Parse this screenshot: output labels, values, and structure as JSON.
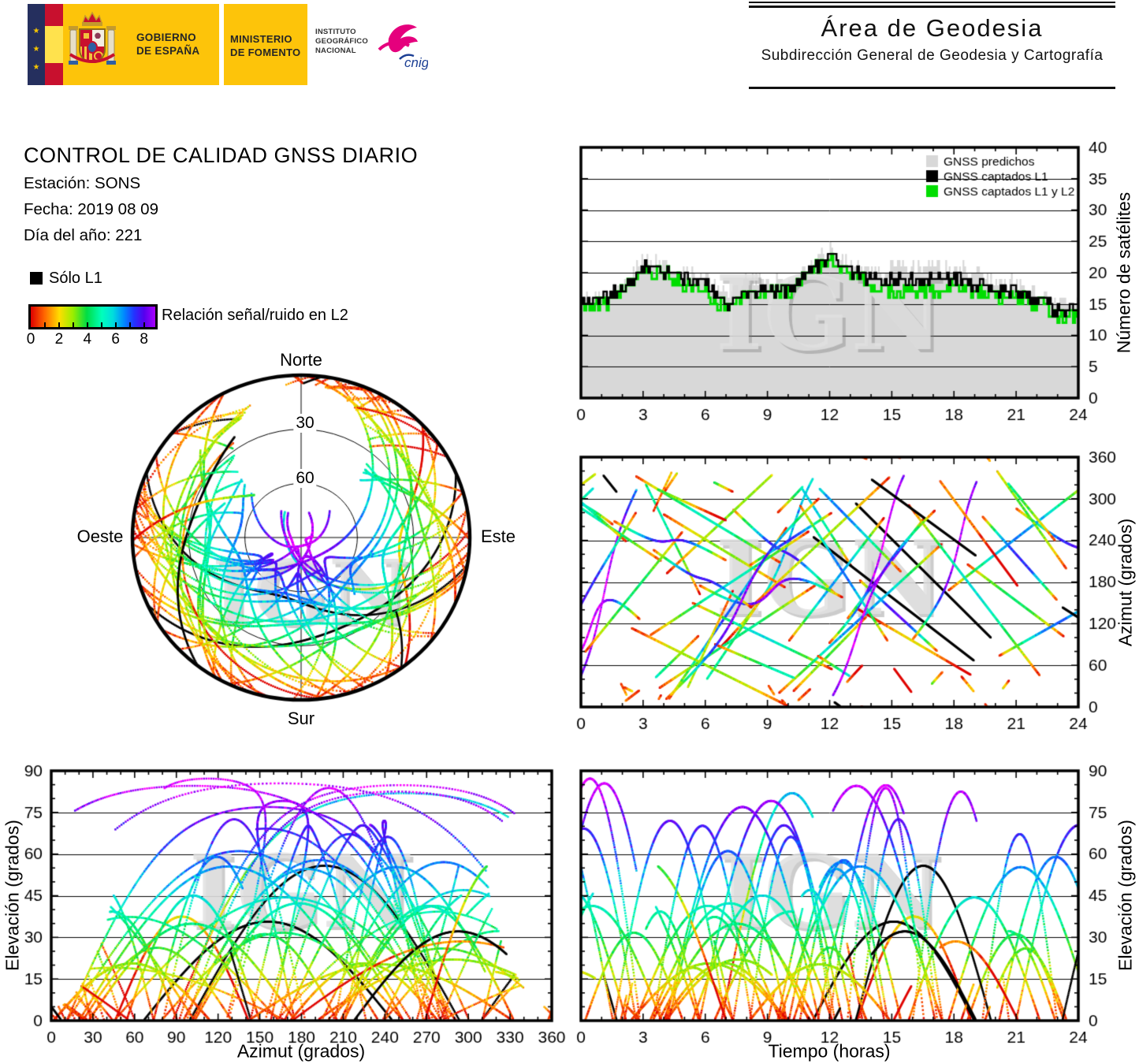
{
  "header": {
    "gobierno_line1": "GOBIERNO",
    "gobierno_line2": "DE ESPAÑA",
    "ministerio_line1": "MINISTERIO",
    "ministerio_line2": "DE FOMENTO",
    "instituto_line1": "INSTITUTO",
    "instituto_line2": "GEOGRÁFICO",
    "instituto_line3": "NACIONAL",
    "cnig": "cnig",
    "area_title": "Área de Geodesia",
    "area_subtitle": "Subdirección General de Geodesia y Cartografía"
  },
  "report": {
    "title": "CONTROL DE CALIDAD GNSS DIARIO",
    "station": "Estación: SONS",
    "date": "Fecha: 2019 08 09",
    "day_of_year": "Día del año: 221"
  },
  "legend": {
    "solo_l1": "Sólo L1",
    "colorbar_label": "Relación señal/ruido en L2",
    "colorbar_ticks": [
      "0",
      "2",
      "4",
      "6",
      "8"
    ],
    "colorbar_max": 8.8
  },
  "watermark": "IGN",
  "sky": {
    "north": "Norte",
    "south": "Sur",
    "east": "Este",
    "west": "Oeste",
    "ring_30": "30",
    "ring_60": "60"
  },
  "axes": {
    "sats_ylabel": "Número de satélites",
    "az_ylabel": "Azimut (grados)",
    "elaz_xlabel": "Azimut (grados)",
    "elaz_ylabel": "Elevación (grados)",
    "elt_xlabel": "Tiempo (horas)",
    "elt_ylabel": "Elevación (grados)"
  },
  "chart_data": [
    {
      "id": "satellite-count",
      "type": "area",
      "title": "Número de satélites vs tiempo (horas)",
      "xlim": [
        0,
        24
      ],
      "ylim": [
        0,
        40
      ],
      "x_ticks": [
        0,
        3,
        6,
        9,
        12,
        15,
        18,
        21,
        24
      ],
      "x_minor_step": 1,
      "y_ticks": [
        0,
        5,
        10,
        15,
        20,
        25,
        30,
        35,
        40
      ],
      "grid": "horizontal",
      "legend_position": "top-right",
      "legend": [
        {
          "label": "GNSS predichos",
          "color": "#d8d8d8"
        },
        {
          "label": "GNSS captados L1",
          "color": "#000000"
        },
        {
          "label": "GNSS captados L1 y L2",
          "color": "#00dd00"
        }
      ],
      "x_hours": [
        0,
        1,
        2,
        3,
        4,
        5,
        6,
        7,
        8,
        9,
        10,
        11,
        12,
        13,
        14,
        15,
        16,
        17,
        18,
        19,
        20,
        21,
        22,
        23,
        24
      ],
      "series": [
        {
          "name": "GNSS predichos",
          "values": [
            16,
            16,
            18,
            22,
            21,
            20,
            19,
            17,
            19,
            19,
            18,
            21,
            24,
            21,
            20,
            21,
            21,
            21,
            21,
            20,
            19,
            18,
            17,
            15,
            15
          ]
        },
        {
          "name": "GNSS captados L1",
          "values": [
            15,
            16,
            17,
            21,
            20,
            19,
            18,
            15,
            16,
            17,
            17,
            20,
            23,
            20,
            19,
            19,
            19,
            19,
            19,
            18,
            17,
            17,
            16,
            14,
            14
          ]
        },
        {
          "name": "GNSS captados L1 y L2",
          "values": [
            15,
            15,
            17,
            20,
            20,
            18,
            17,
            14,
            16,
            17,
            17,
            20,
            22,
            20,
            18,
            17,
            17,
            17,
            18,
            17,
            16,
            16,
            15,
            13,
            13
          ]
        }
      ],
      "step_noise": {
        "seed": 11,
        "amplitude": 1.1,
        "steps_per_hour": 12
      }
    },
    {
      "id": "satellite-tracks",
      "type": "scatter",
      "title": "Trayectorias de satélites coloreadas por relación señal/ruido en L2 (negro = sólo L1)",
      "snr_colormap": [
        [
          0,
          "#dd0000"
        ],
        [
          1,
          "#ff6600"
        ],
        [
          2,
          "#ffdd00"
        ],
        [
          3,
          "#99ee00"
        ],
        [
          4,
          "#00dd44"
        ],
        [
          5,
          "#00ffbb"
        ],
        [
          5.8,
          "#00dddd"
        ],
        [
          6.6,
          "#0088ff"
        ],
        [
          7.3,
          "#2233ff"
        ],
        [
          8,
          "#5500ee"
        ],
        [
          8.7,
          "#aa00ff"
        ],
        [
          9.5,
          "#ff00ff"
        ]
      ],
      "generator": {
        "seed": 20190809,
        "tracks": 58,
        "sample_hours": 0.02,
        "l1_only_fraction": 0.055,
        "low_snr_fraction": 0.08,
        "north_hole": {
          "cx": 0,
          "cy": -0.55,
          "r": 0.4
        }
      },
      "charts": {
        "skyplot": {
          "rings_deg": [
            30,
            60
          ],
          "el_range": [
            0,
            90
          ]
        },
        "azimuth_vs_time": {
          "xlim": [
            0,
            24
          ],
          "ylim": [
            0,
            360
          ],
          "x_ticks": [
            0,
            3,
            6,
            9,
            12,
            15,
            18,
            21,
            24
          ],
          "x_minor_step": 1,
          "y_ticks": [
            0,
            60,
            120,
            180,
            240,
            300,
            360
          ],
          "y_minor_step": 20
        },
        "elevation_vs_azimuth": {
          "xlim": [
            0,
            360
          ],
          "ylim": [
            0,
            90
          ],
          "x_ticks": [
            0,
            30,
            60,
            90,
            120,
            150,
            180,
            210,
            240,
            270,
            300,
            330,
            360
          ],
          "x_minor_step": 10,
          "y_ticks": [
            0,
            15,
            30,
            45,
            60,
            75,
            90
          ],
          "y_minor_step": 5
        },
        "elevation_vs_time": {
          "xlim": [
            0,
            24
          ],
          "ylim": [
            0,
            90
          ],
          "x_ticks": [
            0,
            3,
            6,
            9,
            12,
            15,
            18,
            21,
            24
          ],
          "x_minor_step": 1,
          "y_ticks": [
            0,
            15,
            30,
            45,
            60,
            75,
            90
          ],
          "y_minor_step": 5
        }
      }
    }
  ]
}
